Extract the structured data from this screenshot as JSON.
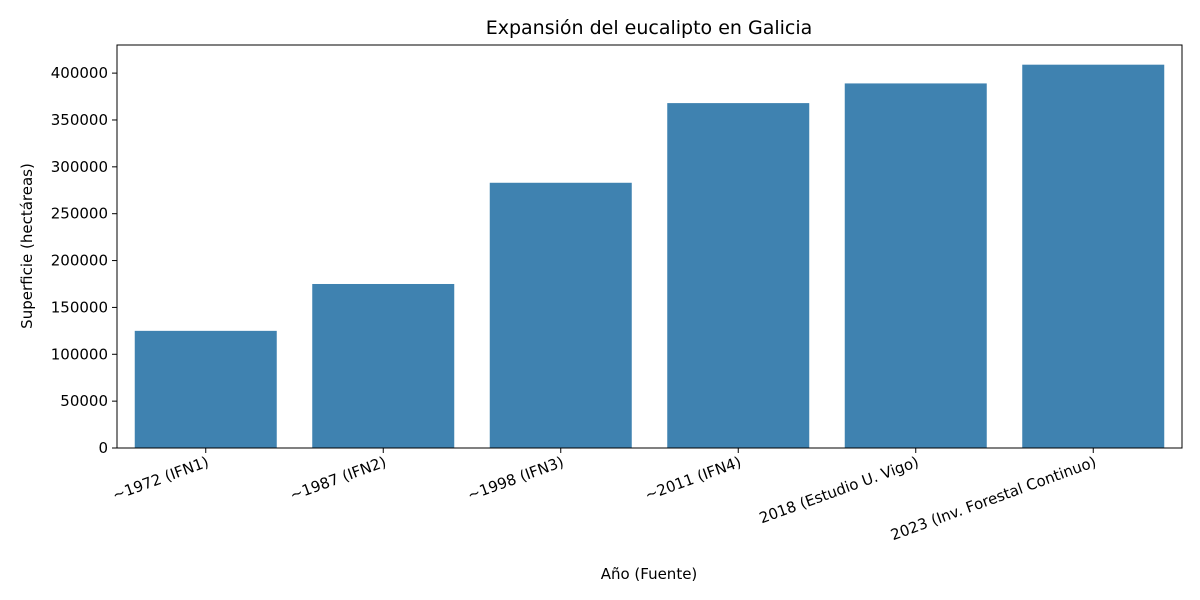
{
  "chart_data": {
    "type": "bar",
    "title": "Expansión del eucalipto en Galicia",
    "xlabel": "Año (Fuente)",
    "ylabel": "Superficie (hectáreas)",
    "categories": [
      "~1972 (IFN1)",
      "~1987 (IFN2)",
      "~1998 (IFN3)",
      "~2011 (IFN4)",
      "2018 (Estudio U. Vigo)",
      "2023 (Inv. Forestal Continuo)"
    ],
    "values": [
      125000,
      175000,
      283000,
      368000,
      389000,
      409000
    ],
    "ylim": [
      0,
      430000
    ],
    "yticks": [
      0,
      50000,
      100000,
      150000,
      200000,
      250000,
      300000,
      350000,
      400000
    ],
    "ytick_labels": [
      "0",
      "50000",
      "100000",
      "150000",
      "200000",
      "250000",
      "300000",
      "350000",
      "400000"
    ],
    "bar_color": "#3f82b0",
    "grid": false,
    "legend": "none"
  }
}
